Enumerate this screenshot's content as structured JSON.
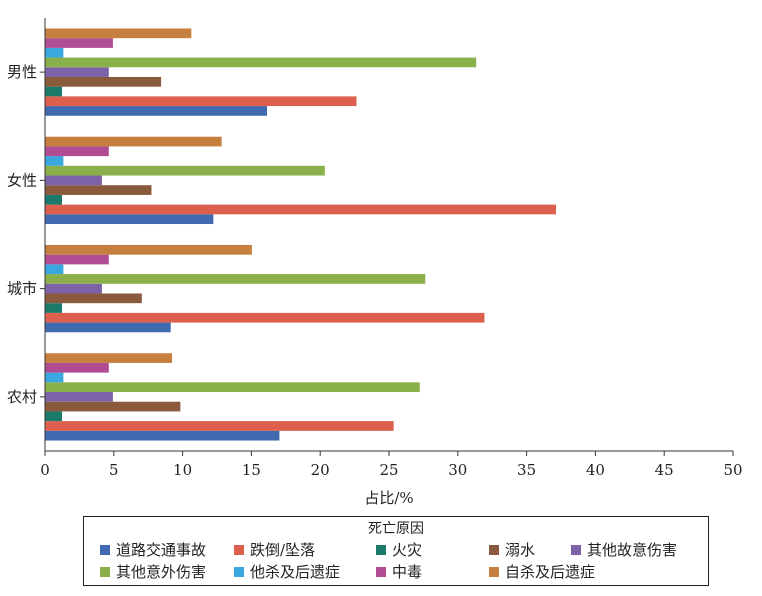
{
  "chart_data": {
    "type": "bar",
    "orientation": "horizontal",
    "categories": [
      "男性",
      "女性",
      "城市",
      "农村"
    ],
    "xlabel": "占比/%",
    "ylabel": "",
    "xlim": [
      0,
      50
    ],
    "xticks": [
      "0",
      "5",
      "10",
      "15",
      "20",
      "25",
      "30",
      "35",
      "40",
      "45",
      "50"
    ],
    "grid": false,
    "legend_title": "死亡原因",
    "legend_position": "bottom",
    "series": [
      {
        "name": "道路交通事故",
        "color": "#4169b0",
        "values": [
          16.1,
          12.2,
          9.1,
          17.0
        ]
      },
      {
        "name": "跌倒/坠落",
        "color": "#dd5f4d",
        "values": [
          22.6,
          37.1,
          31.9,
          25.3
        ]
      },
      {
        "name": "火灾",
        "color": "#1b7a6a",
        "values": [
          1.2,
          1.2,
          1.2,
          1.2
        ]
      },
      {
        "name": "溺水",
        "color": "#8a5a3c",
        "values": [
          8.4,
          7.7,
          7.0,
          9.8
        ]
      },
      {
        "name": "其他故意伤害",
        "color": "#7e62a8",
        "values": [
          4.6,
          4.1,
          4.1,
          4.9
        ]
      },
      {
        "name": "其他意外伤害",
        "color": "#89b04a",
        "values": [
          31.3,
          20.3,
          27.6,
          27.2
        ]
      },
      {
        "name": "他杀及后遗症",
        "color": "#3ba7df",
        "values": [
          1.3,
          1.3,
          1.3,
          1.3
        ]
      },
      {
        "name": "中毒",
        "color": "#b04c93",
        "values": [
          4.9,
          4.6,
          4.6,
          4.6
        ]
      },
      {
        "name": "自杀及后遗症",
        "color": "#c77f3f",
        "values": [
          10.6,
          12.8,
          15.0,
          9.2
        ]
      }
    ]
  }
}
